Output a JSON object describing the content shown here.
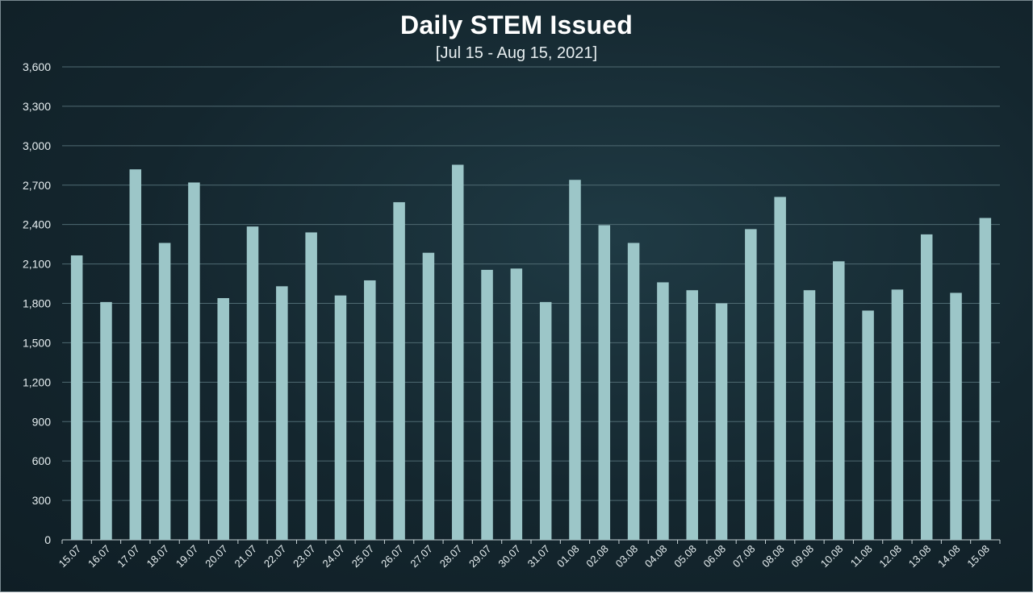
{
  "chart_data": {
    "type": "bar",
    "title": "Daily STEM Issued",
    "subtitle": "[Jul 15 - Aug 15, 2021]",
    "xlabel": "",
    "ylabel": "",
    "ylim": [
      0,
      3600
    ],
    "yticks": [
      0,
      300,
      600,
      900,
      1200,
      1500,
      1800,
      2100,
      2400,
      2700,
      3000,
      3300,
      3600
    ],
    "ytick_labels": [
      "0",
      "300",
      "600",
      "900",
      "1,200",
      "1,500",
      "1,800",
      "2,100",
      "2,400",
      "2,700",
      "3,000",
      "3,300",
      "3,600"
    ],
    "grid": true,
    "categories": [
      "15.07",
      "16.07",
      "17.07",
      "18.07",
      "19.07",
      "20.07",
      "21.07",
      "22.07",
      "23.07",
      "24.07",
      "25.07",
      "26.07",
      "27.07",
      "28.07",
      "29.07",
      "30.07",
      "31.07",
      "01.08",
      "02.08",
      "03.08",
      "04.08",
      "05.08",
      "06.08",
      "07.08",
      "08.08",
      "09.08",
      "10.08",
      "11.08",
      "12.08",
      "13.08",
      "14.08",
      "15.08"
    ],
    "values": [
      2165,
      1810,
      2820,
      2260,
      2720,
      1840,
      2385,
      1930,
      2340,
      1860,
      1975,
      2570,
      2185,
      2855,
      2055,
      2065,
      1810,
      2740,
      2395,
      2260,
      1960,
      1900,
      1800,
      2365,
      2610,
      1900,
      2120,
      1745,
      1905,
      2325,
      1880,
      2450
    ],
    "colors": {
      "bar": "#9cc6c8",
      "grid": "#4f6a72",
      "axis": "#c7d3d6"
    }
  }
}
